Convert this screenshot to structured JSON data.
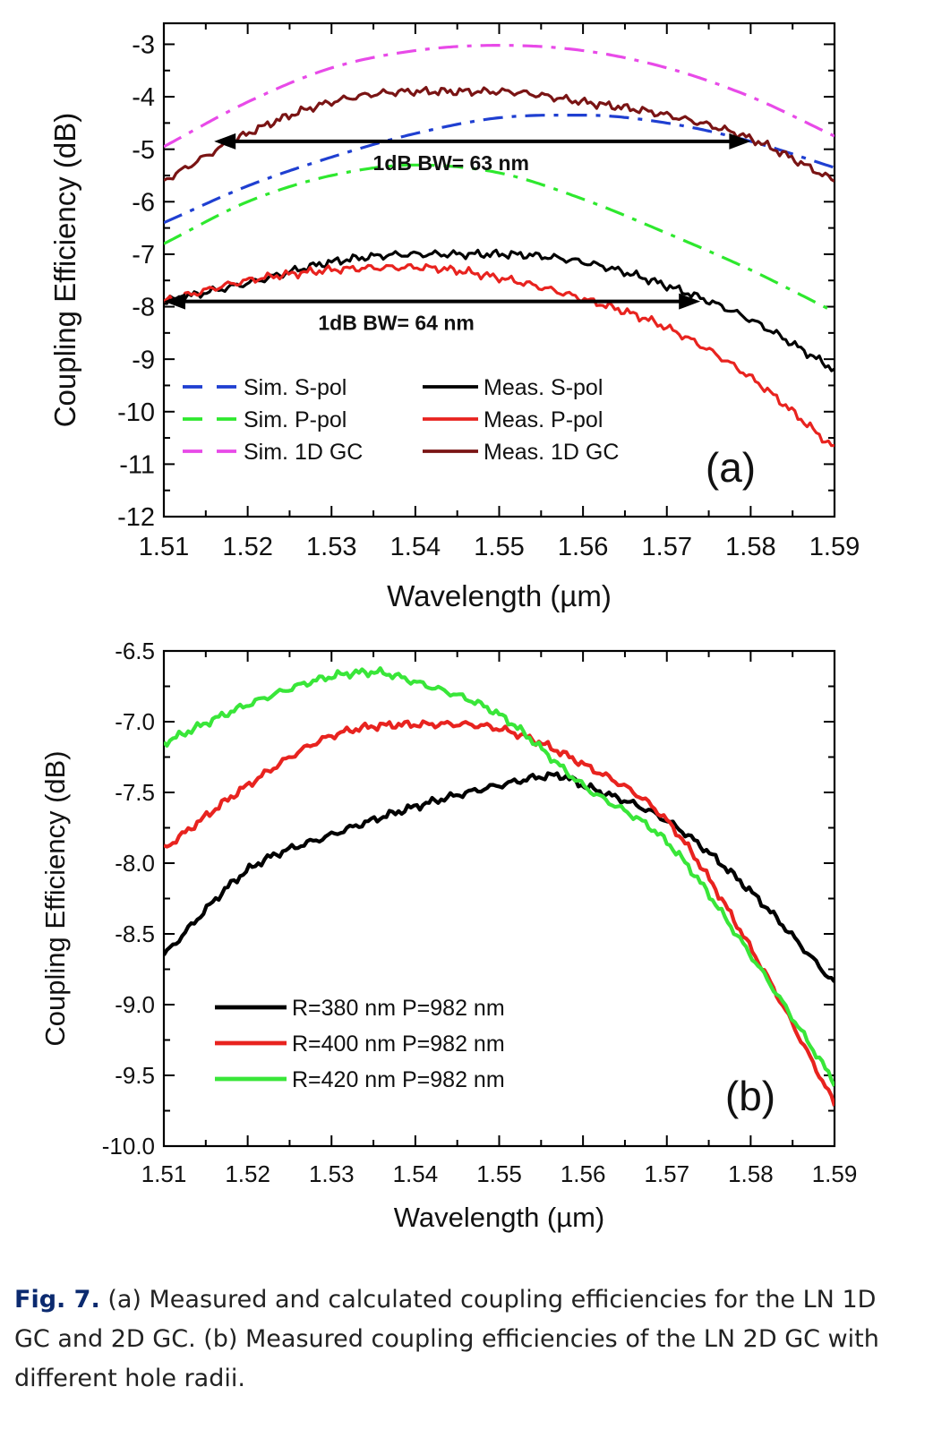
{
  "chart_data": [
    {
      "type": "line",
      "panel_label": "(a)",
      "xlabel": "Wavelength (µm)",
      "ylabel": "Coupling Efficiency (dB)",
      "xlim": [
        1.51,
        1.59
      ],
      "ylim": [
        -12,
        -2.6
      ],
      "xticks": [
        "1.51",
        "1.52",
        "1.53",
        "1.54",
        "1.55",
        "1.56",
        "1.57",
        "1.58",
        "1.59"
      ],
      "yticks": [
        "-3",
        "-4",
        "-5",
        "-6",
        "-7",
        "-8",
        "-9",
        "-10",
        "-11",
        "-12"
      ],
      "legend_placement": "bottom-left",
      "series": [
        {
          "name": "Sim. S-pol",
          "color": "#1f3fd1",
          "style": "dashdot",
          "x": [
            1.51,
            1.52,
            1.53,
            1.54,
            1.55,
            1.56,
            1.57,
            1.58,
            1.59
          ],
          "y": [
            -6.4,
            -5.7,
            -5.15,
            -4.7,
            -4.4,
            -4.35,
            -4.5,
            -4.85,
            -5.35
          ]
        },
        {
          "name": "Sim. P-pol",
          "color": "#2ee82e",
          "style": "dashdot",
          "x": [
            1.51,
            1.52,
            1.53,
            1.54,
            1.55,
            1.56,
            1.57,
            1.58,
            1.59
          ],
          "y": [
            -6.8,
            -6.0,
            -5.5,
            -5.3,
            -5.45,
            -5.95,
            -6.6,
            -7.3,
            -8.1
          ]
        },
        {
          "name": "Sim. 1D GC",
          "color": "#e84ae8",
          "style": "dashdot",
          "x": [
            1.51,
            1.52,
            1.53,
            1.54,
            1.55,
            1.56,
            1.57,
            1.58,
            1.59
          ],
          "y": [
            -4.95,
            -4.1,
            -3.45,
            -3.12,
            -3.02,
            -3.12,
            -3.45,
            -4.0,
            -4.75
          ]
        },
        {
          "name": "Meas. S-pol",
          "color": "#000000",
          "style": "solid",
          "x": [
            1.51,
            1.52,
            1.53,
            1.54,
            1.55,
            1.56,
            1.57,
            1.58,
            1.59
          ],
          "y": [
            -7.9,
            -7.55,
            -7.15,
            -7.0,
            -7.0,
            -7.15,
            -7.6,
            -8.25,
            -9.2
          ]
        },
        {
          "name": "Meas. P-pol",
          "color": "#e8231f",
          "style": "solid",
          "x": [
            1.51,
            1.52,
            1.53,
            1.54,
            1.55,
            1.56,
            1.57,
            1.58,
            1.59
          ],
          "y": [
            -7.9,
            -7.5,
            -7.3,
            -7.25,
            -7.45,
            -7.85,
            -8.4,
            -9.35,
            -10.7
          ]
        },
        {
          "name": "Meas. 1D GC",
          "color": "#7a1414",
          "style": "solid",
          "x": [
            1.51,
            1.52,
            1.53,
            1.54,
            1.55,
            1.56,
            1.57,
            1.58,
            1.59
          ],
          "y": [
            -5.6,
            -4.7,
            -4.1,
            -3.9,
            -3.9,
            -4.1,
            -4.35,
            -4.8,
            -5.6
          ]
        }
      ],
      "annotations": [
        {
          "text": "1dB BW= 63 nm",
          "from": 1.516,
          "to": 1.58,
          "y": -4.85
        },
        {
          "text": "1dB BW= 64 nm",
          "from": 1.51,
          "to": 1.574,
          "y": -7.9
        }
      ]
    },
    {
      "type": "line",
      "panel_label": "(b)",
      "xlabel": "Wavelength (µm)",
      "ylabel": "Coupling Efficiency (dB)",
      "xlim": [
        1.51,
        1.59
      ],
      "ylim": [
        -10.0,
        -6.5
      ],
      "xticks": [
        "1.51",
        "1.52",
        "1.53",
        "1.54",
        "1.55",
        "1.56",
        "1.57",
        "1.58",
        "1.59"
      ],
      "yticks": [
        "-6.5",
        "-7.0",
        "-7.5",
        "-8.0",
        "-8.5",
        "-9.0",
        "-9.5",
        "-10.0"
      ],
      "legend_placement": "bottom-left",
      "series": [
        {
          "name": "R=380 nm P=982 nm",
          "color": "#000000",
          "style": "solid",
          "x": [
            1.51,
            1.52,
            1.53,
            1.54,
            1.55,
            1.557,
            1.56,
            1.57,
            1.58,
            1.59
          ],
          "y": [
            -8.65,
            -8.05,
            -7.8,
            -7.6,
            -7.45,
            -7.38,
            -7.45,
            -7.7,
            -8.2,
            -8.85
          ]
        },
        {
          "name": "R=400 nm P=982 nm",
          "color": "#e8231f",
          "style": "solid",
          "x": [
            1.51,
            1.52,
            1.53,
            1.54,
            1.55,
            1.56,
            1.57,
            1.58,
            1.59
          ],
          "y": [
            -7.9,
            -7.45,
            -7.1,
            -7.02,
            -7.05,
            -7.3,
            -7.7,
            -8.6,
            -9.7
          ]
        },
        {
          "name": "R=420 nm P=982 nm",
          "color": "#39e639",
          "style": "solid",
          "x": [
            1.51,
            1.52,
            1.53,
            1.535,
            1.54,
            1.55,
            1.56,
            1.57,
            1.58,
            1.59
          ],
          "y": [
            -7.15,
            -6.88,
            -6.68,
            -6.65,
            -6.72,
            -6.95,
            -7.45,
            -7.85,
            -8.65,
            -9.55
          ]
        }
      ]
    }
  ],
  "caption": {
    "label": "Fig. 7.",
    "text": " (a) Measured and calculated coupling efficiencies for the LN 1D GC and 2D GC. (b) Measured coupling efficiencies of the LN 2D GC with different hole radii."
  }
}
